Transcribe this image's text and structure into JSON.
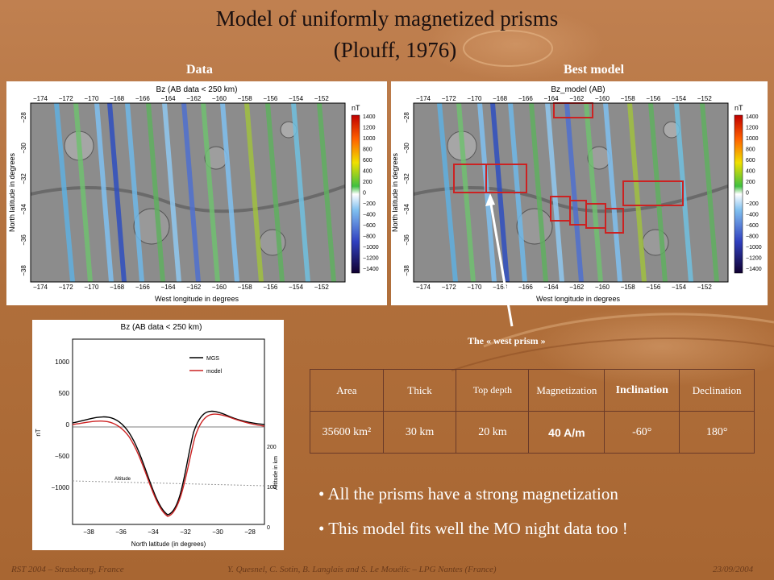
{
  "title": {
    "line1": "Model of uniformly magnetized prisms",
    "line2": "(Plouff, 1976)"
  },
  "labels": {
    "data": "Data",
    "best_model": "Best model",
    "west_prism": "The « west prism »"
  },
  "map_left": {
    "title": "Bz (AB data < 250 km)",
    "xlabel": "West longitude in degrees",
    "ylabel": "North latitude in degrees",
    "x_ticks": [
      "−174",
      "−172",
      "−170",
      "−168",
      "−166",
      "−164",
      "−162",
      "−160",
      "−158",
      "−156",
      "−154",
      "−152"
    ],
    "y_ticks": [
      "−28",
      "−30",
      "−32",
      "−34",
      "−36",
      "−38"
    ],
    "unit": "nT",
    "cbar_ticks": [
      "1400",
      "1200",
      "1000",
      "800",
      "600",
      "400",
      "200",
      "0",
      "−200",
      "−400",
      "−600",
      "−800",
      "−1000",
      "−1200",
      "−1400"
    ]
  },
  "map_right": {
    "title": "Bz_model (AB)",
    "xlabel": "West longitude in degrees",
    "ylabel": "North latitude in degrees",
    "x_ticks": [
      "−174",
      "−172",
      "−170",
      "−168",
      "−166",
      "−164",
      "−162",
      "−160",
      "−158",
      "−156",
      "−154",
      "−152"
    ],
    "y_ticks": [
      "−28",
      "−30",
      "−32",
      "−34",
      "−36",
      "−38"
    ],
    "unit": "nT",
    "cbar_ticks": [
      "1400",
      "1200",
      "1000",
      "800",
      "600",
      "400",
      "200",
      "0",
      "−200",
      "−400",
      "−600",
      "−800",
      "−1000",
      "−1200",
      "−1400"
    ]
  },
  "profile": {
    "title": "Bz (AB data < 250 km)",
    "xlabel": "North latitude (in degrees)",
    "ylabel": "nT",
    "y2label": "Altitude in km",
    "x_ticks": [
      "−38",
      "−36",
      "−34",
      "−32",
      "−30",
      "−28"
    ],
    "y_ticks": [
      "1000",
      "500",
      "0",
      "−500",
      "−1000"
    ],
    "y2_ticks": [
      "200",
      "100",
      "0"
    ],
    "legend": [
      "MGS",
      "model"
    ],
    "altitude_label": "Altitude"
  },
  "table": {
    "headers": [
      "Area",
      "Thick",
      "Top depth",
      "Magnetization",
      "Inclination",
      "Declination"
    ],
    "values": [
      "35600 km²",
      "30 km",
      "20 km",
      "40 A/m",
      "-60°",
      "180°"
    ]
  },
  "bullets": [
    "All the prisms have a strong magnetization",
    "This model fits well the MO night data too !"
  ],
  "footer": {
    "left": "RST 2004 – Strasbourg, France",
    "center": "Y. Quesnel, C. Sotin, B. Langlais and S. Le Mouélic – LPG Nantes (France)",
    "right": "23/09/2004"
  },
  "colors": {
    "accent_red": "#cc2222",
    "profile_black": "#000000",
    "background": "#b4743e"
  }
}
